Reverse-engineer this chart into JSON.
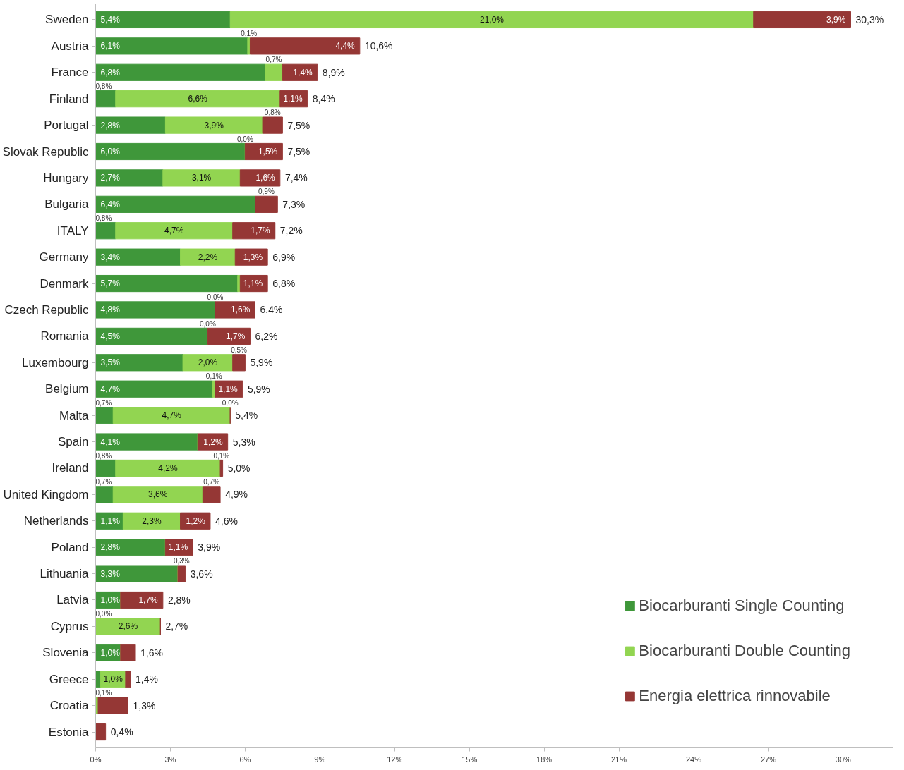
{
  "chart_data": {
    "type": "bar",
    "orientation": "horizontal",
    "stacked": true,
    "categories": [
      "Sweden",
      "Austria",
      "France",
      "Finland",
      "Portugal",
      "Slovak Republic",
      "Hungary",
      "Bulgaria",
      "ITALY",
      "Germany",
      "Denmark",
      "Czech Republic",
      "Romania",
      "Luxembourg",
      "Belgium",
      "Malta",
      "Spain",
      "Ireland",
      "United Kingdom",
      "Netherlands",
      "Poland",
      "Lithuania",
      "Latvia",
      "Cyprus",
      "Slovenia",
      "Greece",
      "Croatia",
      "Estonia"
    ],
    "series": [
      {
        "name": "Biocarburanti Single Counting",
        "color": "#3f973a",
        "values": [
          5.4,
          6.1,
          6.8,
          0.8,
          2.8,
          6.0,
          2.7,
          6.4,
          0.8,
          3.4,
          5.7,
          4.8,
          4.5,
          3.5,
          4.7,
          0.7,
          4.1,
          0.8,
          0.7,
          1.1,
          2.8,
          3.3,
          1.0,
          0.0,
          1.0,
          0.2,
          0.0,
          0.0
        ],
        "value_labels": [
          "5,4%",
          "6,1%",
          "6,8%",
          "0,8%",
          "2,8%",
          "6,0%",
          "2,7%",
          "6,4%",
          "0,8%",
          "3,4%",
          "5,7%",
          "4,8%",
          "4,5%",
          "3,5%",
          "4,7%",
          "0,7%",
          "4,1%",
          "0,8%",
          "0,7%",
          "1,1%",
          "2,8%",
          "3,3%",
          "1,0%",
          "0,0%",
          "1,0%",
          null,
          null,
          null
        ]
      },
      {
        "name": "Biocarburanti Double Counting",
        "color": "#92d551",
        "values": [
          21.0,
          0.1,
          0.7,
          6.6,
          3.9,
          0.0,
          3.1,
          0.0,
          4.7,
          2.2,
          0.1,
          0.0,
          0.0,
          2.0,
          0.1,
          4.7,
          0.0,
          4.2,
          3.6,
          2.3,
          0.0,
          0.0,
          0.0,
          2.6,
          0.0,
          1.0,
          0.1,
          0.0
        ],
        "value_labels": [
          "21,0%",
          "0,1%",
          "0,7%",
          "6,6%",
          "3,9%",
          "0,0%",
          "3,1%",
          null,
          "4,7%",
          "2,2%",
          null,
          "0,0%",
          "0,0%",
          "2,0%",
          "0,1%",
          "4,7%",
          null,
          "4,2%",
          "3,6%",
          "2,3%",
          null,
          null,
          null,
          "2,6%",
          null,
          "1,0%",
          "0,1%",
          null
        ]
      },
      {
        "name": "Energia elettrica rinnovabile",
        "color": "#953735",
        "values": [
          3.9,
          4.4,
          1.4,
          1.1,
          0.8,
          1.5,
          1.6,
          0.9,
          1.7,
          1.3,
          1.1,
          1.6,
          1.7,
          0.5,
          1.1,
          0.0,
          1.2,
          0.1,
          0.7,
          1.2,
          1.1,
          0.3,
          1.7,
          0.0,
          0.6,
          0.2,
          1.2,
          0.4
        ],
        "value_labels": [
          "3,9%",
          "4,4%",
          "1,4%",
          "1,1%",
          "0,8%",
          "1,5%",
          "1,6%",
          "0,9%",
          "1,7%",
          "1,3%",
          "1,1%",
          "1,6%",
          "1,7%",
          "0,5%",
          "1,1%",
          "0,0%",
          "1,2%",
          "0,1%",
          "0,7%",
          "1,2%",
          "1,1%",
          "0,3%",
          "1,7%",
          null,
          null,
          null,
          null,
          null
        ]
      }
    ],
    "totals": [
      "30,3%",
      "10,6%",
      "8,9%",
      "8,4%",
      "7,5%",
      "7,5%",
      "7,4%",
      "7,3%",
      "7,2%",
      "6,9%",
      "6,8%",
      "6,4%",
      "6,2%",
      "5,9%",
      "5,9%",
      "5,4%",
      "5,3%",
      "5,0%",
      "4,9%",
      "4,6%",
      "3,9%",
      "3,6%",
      "2,8%",
      "2,7%",
      "1,6%",
      "1,4%",
      "1,3%",
      "0,4%"
    ],
    "xlim": [
      0,
      32
    ],
    "xticks": [
      {
        "value": 0,
        "label": "0%"
      },
      {
        "value": 3,
        "label": "3%"
      },
      {
        "value": 6,
        "label": "6%"
      },
      {
        "value": 9,
        "label": "9%"
      },
      {
        "value": 12,
        "label": "12%"
      },
      {
        "value": 15,
        "label": "15%"
      },
      {
        "value": 18,
        "label": "18%"
      },
      {
        "value": 21,
        "label": "21%"
      },
      {
        "value": 24,
        "label": "24%"
      },
      {
        "value": 27,
        "label": "27%"
      },
      {
        "value": 30,
        "label": "30%"
      }
    ],
    "grid": false,
    "legend": "bottom right"
  }
}
